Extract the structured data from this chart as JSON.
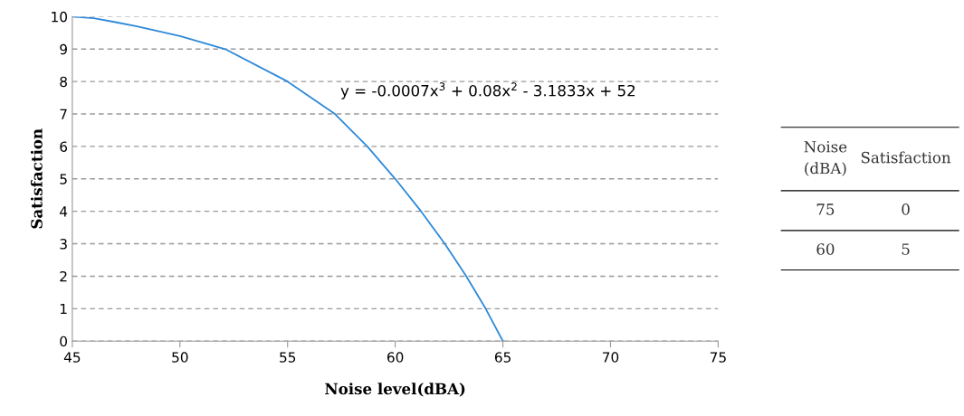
{
  "chart_data": [
    {
      "type": "line",
      "xlabel": "Noise level(dBA)",
      "ylabel": "Satisfaction",
      "series": [
        {
          "color": "#2e8ad8",
          "x": [
            45,
            46,
            47,
            48,
            50,
            52.1,
            55,
            57.2,
            58.7,
            60,
            61.2,
            62.3,
            63.3,
            64.2,
            65
          ],
          "values": [
            10,
            9.95,
            9.83,
            9.7,
            9.4,
            9,
            8,
            7,
            6,
            5,
            4,
            3,
            2,
            1,
            0
          ]
        }
      ],
      "xlim": [
        45,
        75
      ],
      "xticks": [
        45,
        50,
        55,
        60,
        65,
        70,
        75
      ],
      "ylim": [
        0,
        10
      ],
      "yticks": [
        0,
        1,
        2,
        3,
        4,
        5,
        6,
        7,
        8,
        9,
        10
      ],
      "grid": "y",
      "line_style": "solid",
      "marker": "none",
      "annotations": [
        "y = -0.0007x$^{3}$ + 0.08x$^{2}$ - 3.1833x + 52"
      ]
    },
    {
      "type": "other",
      "annotations": [
        "Noise\n(dBA)",
        "Satisfaction",
        "75",
        "0",
        "60",
        "5"
      ]
    }
  ]
}
